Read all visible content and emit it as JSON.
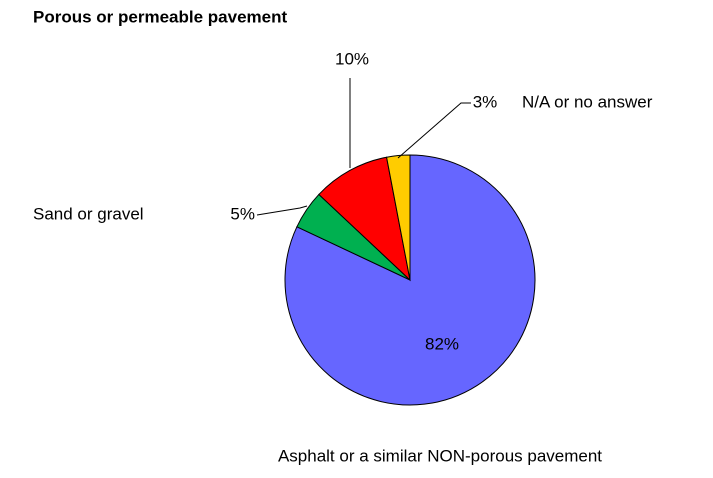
{
  "chart_data": {
    "type": "pie",
    "title": "Porous or permeable pavement",
    "categories": [
      "Asphalt or a similar NON-porous pavement",
      "Sand or gravel",
      null,
      "N/A or no answer"
    ],
    "values": [
      82,
      5,
      10,
      3
    ],
    "value_labels": [
      "82%",
      "5%",
      "10%",
      "3%"
    ],
    "colors": [
      "#6666ff",
      "#00b050",
      "#ff0000",
      "#ffcc00"
    ]
  }
}
